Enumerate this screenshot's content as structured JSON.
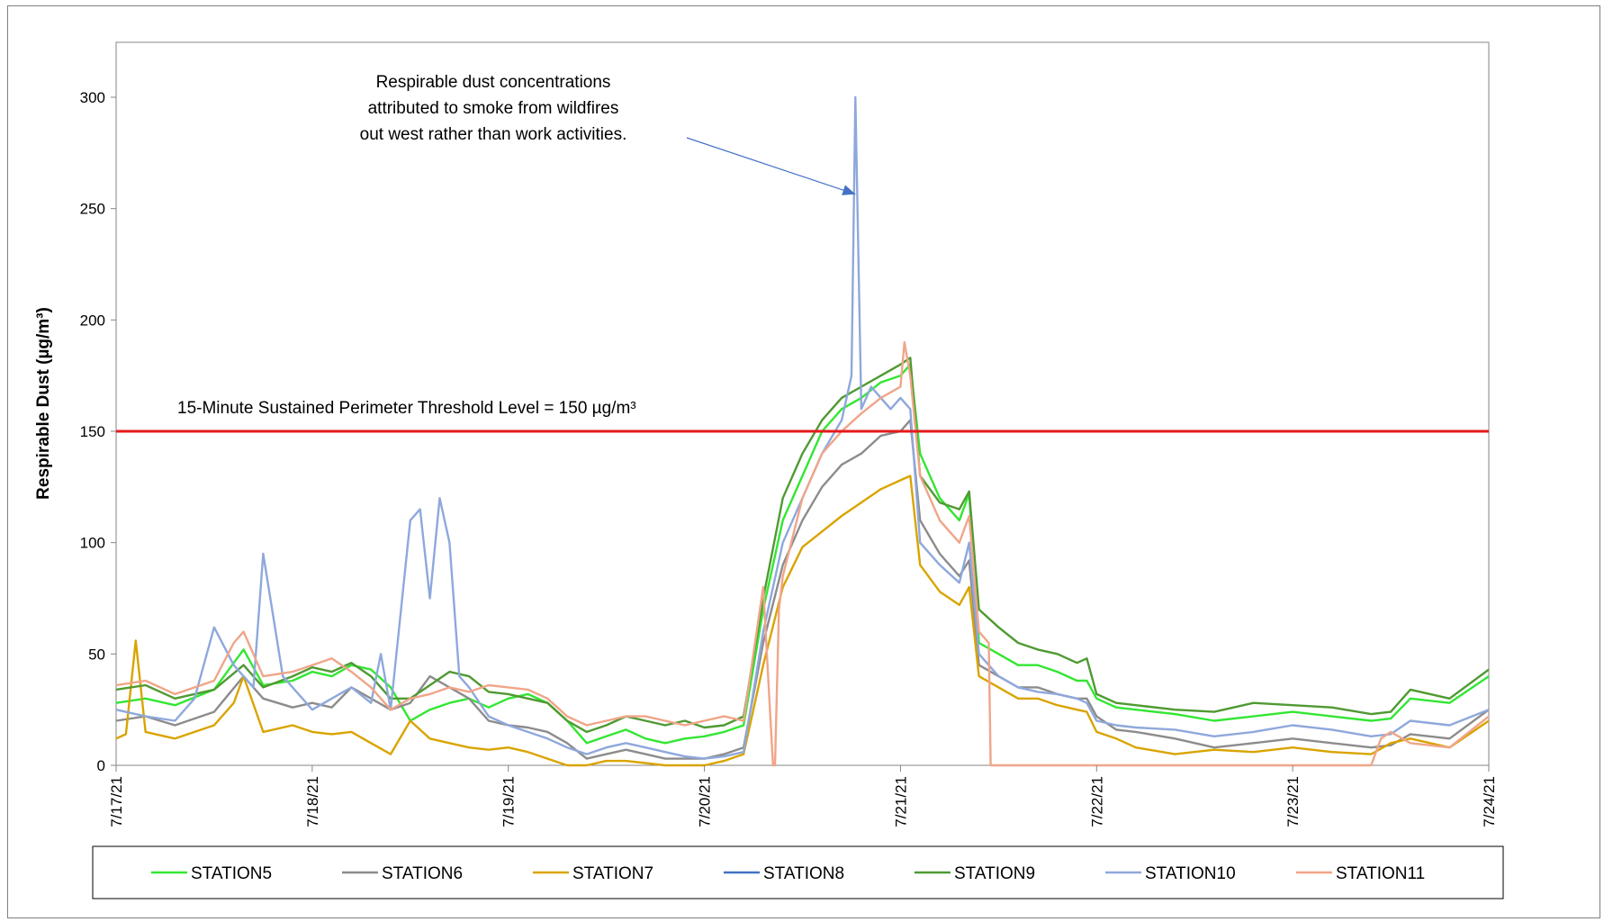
{
  "chart_data": {
    "type": "line",
    "title": "",
    "xlabel": "",
    "ylabel": "Respirable Dust (µg/m³)",
    "ylim": [
      0,
      300
    ],
    "yticks": [
      0,
      50,
      100,
      150,
      200,
      250,
      300
    ],
    "xlim": [
      0,
      7
    ],
    "x_tick_labels": [
      "7/17/21",
      "7/18/21",
      "7/19/21",
      "7/20/21",
      "7/21/21",
      "7/22/21",
      "7/23/21",
      "7/24/21"
    ],
    "grid": false,
    "legend_position": "bottom",
    "threshold": {
      "value": 150,
      "label": "15-Minute Sustained Perimeter Threshold Level = 150 µg/m³",
      "color": "#e41a1c"
    },
    "annotation": {
      "lines": [
        "Respirable dust concentrations",
        "attributed to smoke from wildfires",
        "out west rather than work activities."
      ],
      "points_to": {
        "x": 3.77,
        "y": 250
      }
    },
    "series": [
      {
        "name": "STATION5",
        "color": "#33e633",
        "x": [
          0,
          0.15,
          0.3,
          0.5,
          0.65,
          0.75,
          0.9,
          1.0,
          1.1,
          1.2,
          1.3,
          1.4,
          1.5,
          1.6,
          1.7,
          1.8,
          1.9,
          2.0,
          2.1,
          2.2,
          2.3,
          2.4,
          2.5,
          2.6,
          2.7,
          2.8,
          2.9,
          3.0,
          3.1,
          3.2,
          3.3,
          3.4,
          3.5,
          3.6,
          3.7,
          3.8,
          3.9,
          4.0,
          4.05,
          4.1,
          4.2,
          4.3,
          4.35,
          4.4,
          4.5,
          4.6,
          4.7,
          4.8,
          4.9,
          4.95,
          5.0,
          5.1,
          5.2,
          5.4,
          5.6,
          5.8,
          6.0,
          6.2,
          6.4,
          6.5,
          6.6,
          6.8,
          7.0
        ],
        "y": [
          28,
          30,
          27,
          34,
          52,
          36,
          38,
          42,
          40,
          45,
          43,
          35,
          20,
          25,
          28,
          30,
          26,
          30,
          32,
          28,
          20,
          10,
          13,
          16,
          12,
          10,
          12,
          13,
          15,
          18,
          70,
          110,
          130,
          150,
          160,
          165,
          172,
          175,
          180,
          140,
          120,
          110,
          122,
          55,
          50,
          45,
          45,
          42,
          38,
          38,
          30,
          26,
          25,
          23,
          20,
          22,
          24,
          22,
          20,
          21,
          30,
          28,
          40
        ]
      },
      {
        "name": "STATION6",
        "color": "#8c8c8c",
        "x": [
          0,
          0.15,
          0.3,
          0.5,
          0.65,
          0.75,
          0.9,
          1.0,
          1.1,
          1.2,
          1.3,
          1.4,
          1.5,
          1.6,
          1.7,
          1.8,
          1.9,
          2.0,
          2.1,
          2.2,
          2.3,
          2.4,
          2.5,
          2.6,
          2.7,
          2.8,
          2.9,
          3.0,
          3.1,
          3.2,
          3.3,
          3.4,
          3.5,
          3.6,
          3.7,
          3.8,
          3.9,
          4.0,
          4.05,
          4.1,
          4.2,
          4.3,
          4.35,
          4.4,
          4.5,
          4.6,
          4.7,
          4.8,
          4.9,
          4.95,
          5.0,
          5.1,
          5.2,
          5.4,
          5.6,
          5.8,
          6.0,
          6.2,
          6.4,
          6.5,
          6.6,
          6.8,
          7.0
        ],
        "y": [
          20,
          22,
          18,
          24,
          40,
          30,
          26,
          28,
          26,
          35,
          30,
          25,
          28,
          40,
          35,
          30,
          20,
          18,
          17,
          15,
          10,
          3,
          5,
          7,
          5,
          3,
          3,
          3,
          5,
          8,
          55,
          90,
          110,
          125,
          135,
          140,
          148,
          150,
          155,
          110,
          95,
          85,
          92,
          45,
          40,
          35,
          35,
          32,
          30,
          30,
          22,
          16,
          15,
          12,
          8,
          10,
          12,
          10,
          8,
          9,
          14,
          12,
          25
        ]
      },
      {
        "name": "STATION7",
        "color": "#d9a400",
        "x": [
          0,
          0.05,
          0.1,
          0.15,
          0.3,
          0.5,
          0.6,
          0.65,
          0.75,
          0.9,
          1.0,
          1.1,
          1.2,
          1.3,
          1.4,
          1.5,
          1.6,
          1.7,
          1.8,
          1.9,
          2.0,
          2.1,
          2.2,
          2.3,
          2.4,
          2.5,
          2.6,
          2.7,
          2.8,
          2.9,
          3.0,
          3.1,
          3.2,
          3.3,
          3.4,
          3.5,
          3.6,
          3.7,
          3.8,
          3.9,
          4.0,
          4.05,
          4.1,
          4.2,
          4.3,
          4.35,
          4.4,
          4.5,
          4.6,
          4.7,
          4.8,
          4.9,
          4.95,
          5.0,
          5.1,
          5.2,
          5.4,
          5.6,
          5.8,
          6.0,
          6.2,
          6.4,
          6.5,
          6.6,
          6.8,
          7.0
        ],
        "y": [
          12,
          14,
          56,
          15,
          12,
          18,
          28,
          40,
          15,
          18,
          15,
          14,
          15,
          10,
          5,
          20,
          12,
          10,
          8,
          7,
          8,
          6,
          3,
          0,
          0,
          2,
          2,
          1,
          0,
          0,
          0,
          2,
          5,
          45,
          80,
          98,
          105,
          112,
          118,
          124,
          128,
          130,
          90,
          78,
          72,
          80,
          40,
          35,
          30,
          30,
          27,
          25,
          24,
          15,
          12,
          8,
          5,
          7,
          6,
          8,
          6,
          5,
          10,
          12,
          8,
          20
        ]
      },
      {
        "name": "STATION8",
        "color": "#4472c4",
        "x": [
          0,
          1,
          2,
          3,
          4,
          5,
          6,
          7
        ],
        "y": [
          null,
          null,
          null,
          null,
          null,
          null,
          null,
          null
        ]
      },
      {
        "name": "STATION9",
        "color": "#4f9a32",
        "x": [
          0,
          0.15,
          0.3,
          0.5,
          0.65,
          0.75,
          0.9,
          1.0,
          1.1,
          1.2,
          1.3,
          1.4,
          1.5,
          1.6,
          1.7,
          1.8,
          1.9,
          2.0,
          2.1,
          2.2,
          2.3,
          2.4,
          2.5,
          2.6,
          2.7,
          2.8,
          2.9,
          3.0,
          3.1,
          3.2,
          3.3,
          3.4,
          3.5,
          3.6,
          3.7,
          3.8,
          3.9,
          4.0,
          4.05,
          4.1,
          4.2,
          4.3,
          4.35,
          4.4,
          4.5,
          4.6,
          4.7,
          4.8,
          4.9,
          4.95,
          5.0,
          5.1,
          5.2,
          5.4,
          5.6,
          5.8,
          6.0,
          6.2,
          6.4,
          6.5,
          6.6,
          6.8,
          7.0
        ],
        "y": [
          34,
          36,
          30,
          34,
          45,
          35,
          40,
          44,
          42,
          46,
          40,
          30,
          30,
          36,
          42,
          40,
          33,
          32,
          30,
          28,
          20,
          15,
          18,
          22,
          20,
          18,
          20,
          17,
          18,
          22,
          75,
          120,
          140,
          155,
          165,
          170,
          175,
          180,
          183,
          130,
          118,
          115,
          123,
          70,
          62,
          55,
          52,
          50,
          46,
          48,
          32,
          28,
          27,
          25,
          24,
          28,
          27,
          26,
          23,
          24,
          34,
          30,
          43
        ]
      },
      {
        "name": "STATION10",
        "color": "#8fa8dc",
        "x": [
          0,
          0.15,
          0.3,
          0.4,
          0.5,
          0.6,
          0.65,
          0.7,
          0.75,
          0.85,
          1.0,
          1.1,
          1.2,
          1.3,
          1.35,
          1.4,
          1.5,
          1.55,
          1.6,
          1.65,
          1.7,
          1.75,
          1.8,
          1.9,
          2.0,
          2.1,
          2.2,
          2.3,
          2.4,
          2.5,
          2.6,
          2.7,
          2.8,
          2.9,
          3.0,
          3.1,
          3.2,
          3.3,
          3.4,
          3.5,
          3.6,
          3.7,
          3.75,
          3.77,
          3.8,
          3.85,
          3.9,
          3.95,
          4.0,
          4.05,
          4.1,
          4.2,
          4.3,
          4.35,
          4.4,
          4.5,
          4.6,
          4.7,
          4.8,
          4.9,
          4.95,
          5.0,
          5.1,
          5.2,
          5.4,
          5.6,
          5.8,
          6.0,
          6.2,
          6.4,
          6.5,
          6.6,
          6.8,
          7.0
        ],
        "y": [
          25,
          22,
          20,
          30,
          62,
          45,
          40,
          35,
          95,
          40,
          25,
          30,
          35,
          28,
          50,
          25,
          110,
          115,
          75,
          120,
          100,
          40,
          35,
          22,
          18,
          15,
          12,
          8,
          5,
          8,
          10,
          8,
          6,
          4,
          3,
          4,
          6,
          60,
          100,
          120,
          140,
          155,
          175,
          300,
          160,
          170,
          165,
          160,
          165,
          160,
          100,
          90,
          82,
          100,
          50,
          40,
          35,
          33,
          32,
          30,
          28,
          20,
          18,
          17,
          16,
          13,
          15,
          18,
          16,
          13,
          14,
          20,
          18,
          25
        ]
      },
      {
        "name": "STATION11",
        "color": "#f0a589",
        "x": [
          0,
          0.15,
          0.3,
          0.5,
          0.6,
          0.65,
          0.75,
          0.9,
          1.0,
          1.1,
          1.2,
          1.3,
          1.4,
          1.5,
          1.6,
          1.7,
          1.8,
          1.9,
          2.0,
          2.1,
          2.2,
          2.3,
          2.4,
          2.5,
          2.6,
          2.7,
          2.8,
          2.9,
          3.0,
          3.1,
          3.2,
          3.3,
          3.35,
          3.36,
          3.38,
          3.4,
          3.5,
          3.6,
          3.7,
          3.8,
          3.9,
          4.0,
          4.02,
          4.05,
          4.1,
          4.2,
          4.3,
          4.35,
          4.4,
          4.45,
          4.46,
          4.5,
          5.0,
          5.5,
          6.0,
          6.4,
          6.45,
          6.5,
          6.6,
          6.8,
          7.0
        ],
        "y": [
          36,
          38,
          32,
          38,
          55,
          60,
          40,
          42,
          45,
          48,
          42,
          35,
          25,
          30,
          32,
          35,
          33,
          36,
          35,
          34,
          30,
          22,
          18,
          20,
          22,
          22,
          20,
          18,
          20,
          22,
          20,
          80,
          0,
          0,
          70,
          85,
          120,
          140,
          150,
          158,
          165,
          170,
          190,
          175,
          130,
          110,
          100,
          112,
          60,
          55,
          0,
          0,
          0,
          0,
          0,
          0,
          12,
          15,
          10,
          8,
          22
        ]
      }
    ]
  },
  "colors": {
    "axis": "#868686",
    "threshold": "#e41a1c",
    "arrow": "#4472c4"
  }
}
